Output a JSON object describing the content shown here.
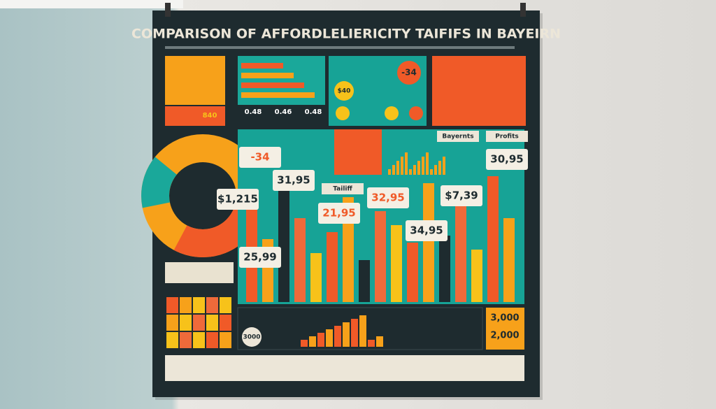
{
  "poster": {
    "title": "COMPARISON OF AFFORDLELIERICITY TAIFIFS IN BAYEIRN",
    "top_labels": [
      "-34",
      "$40",
      "840",
      "0.48",
      "0.46",
      "0.48"
    ],
    "section_labels": [
      "Bayernts",
      "Profits",
      "Tailiff"
    ],
    "callouts": [
      "-34",
      "$1,215",
      "31,95",
      "32,95",
      "$7,39",
      "30,95",
      "21,95",
      "34,95",
      "25,99"
    ],
    "bottom_labels": [
      "3,000",
      "2,000",
      "3000"
    ]
  }
}
